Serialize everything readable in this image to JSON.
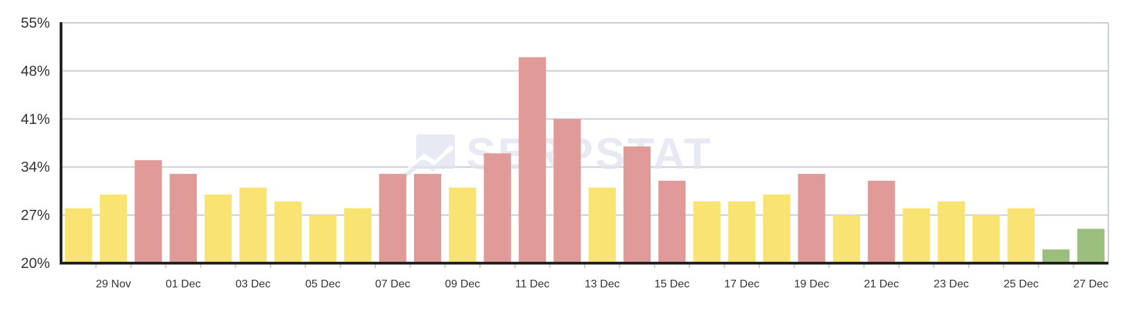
{
  "chart_data": {
    "type": "bar",
    "categories": [
      "28 Nov",
      "29 Nov",
      "30 Nov",
      "01 Dec",
      "02 Dec",
      "03 Dec",
      "04 Dec",
      "05 Dec",
      "06 Dec",
      "07 Dec",
      "08 Dec",
      "09 Dec",
      "10 Dec",
      "11 Dec",
      "12 Dec",
      "13 Dec",
      "14 Dec",
      "15 Dec",
      "16 Dec",
      "17 Dec",
      "18 Dec",
      "19 Dec",
      "20 Dec",
      "21 Dec",
      "22 Dec",
      "23 Dec",
      "24 Dec",
      "25 Dec",
      "26 Dec",
      "27 Dec"
    ],
    "tick_labels": [
      "29 Nov",
      "01 Dec",
      "03 Dec",
      "05 Dec",
      "07 Dec",
      "09 Dec",
      "11 Dec",
      "13 Dec",
      "15 Dec",
      "17 Dec",
      "19 Dec",
      "21 Dec",
      "23 Dec",
      "25 Dec",
      "27 Dec"
    ],
    "values": [
      28,
      30,
      35,
      33,
      30,
      31,
      29,
      27,
      28,
      33,
      33,
      31,
      36,
      50,
      41,
      31,
      37,
      32,
      29,
      29,
      30,
      33,
      27,
      32,
      28,
      29,
      27,
      28,
      22,
      25
    ],
    "bar_colors": [
      "yellow",
      "yellow",
      "red",
      "red",
      "yellow",
      "yellow",
      "yellow",
      "yellow",
      "yellow",
      "red",
      "red",
      "yellow",
      "red",
      "red",
      "red",
      "yellow",
      "red",
      "red",
      "yellow",
      "yellow",
      "yellow",
      "red",
      "yellow",
      "red",
      "yellow",
      "yellow",
      "yellow",
      "yellow",
      "green",
      "green"
    ],
    "yticks": [
      "20%",
      "27%",
      "34%",
      "41%",
      "48%",
      "55%"
    ],
    "ylim": [
      20,
      55
    ],
    "grid": true,
    "title": "",
    "xlabel": "",
    "ylabel": ""
  },
  "palette": {
    "yellow": "#f9e373",
    "red": "#e09a98",
    "green": "#9bbf7d",
    "grid": "#c8cdd8",
    "axis": "#222222",
    "watermark": "#dfe4ee"
  },
  "watermark": {
    "text": "SERPSTAT"
  }
}
